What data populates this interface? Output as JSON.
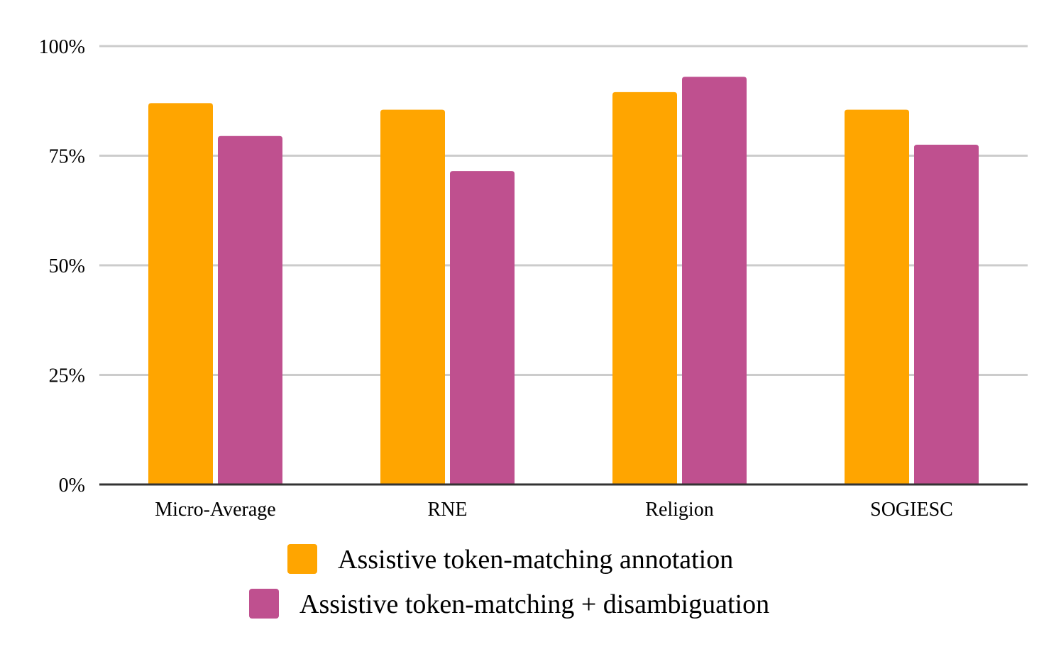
{
  "chart_data": {
    "type": "bar",
    "title": "",
    "xlabel": "",
    "ylabel": "",
    "categories": [
      "Micro-Average",
      "RNE",
      "Religion",
      "SOGIESC"
    ],
    "series": [
      {
        "name": "Assistive token-matching annotation",
        "color": "#ffa500",
        "values": [
          87,
          85.5,
          89.5,
          85.5
        ]
      },
      {
        "name": "Assistive token-matching + disambiguation",
        "color": "#bf508f",
        "values": [
          79.5,
          71.5,
          93,
          77.5
        ]
      }
    ],
    "ylim": [
      0,
      100
    ],
    "yticks": [
      {
        "value": 0,
        "label": "0%"
      },
      {
        "value": 25,
        "label": "25%"
      },
      {
        "value": 50,
        "label": "50%"
      },
      {
        "value": 75,
        "label": "75%"
      },
      {
        "value": 100,
        "label": "100%"
      }
    ],
    "grid": true,
    "legend_position": "bottom"
  }
}
